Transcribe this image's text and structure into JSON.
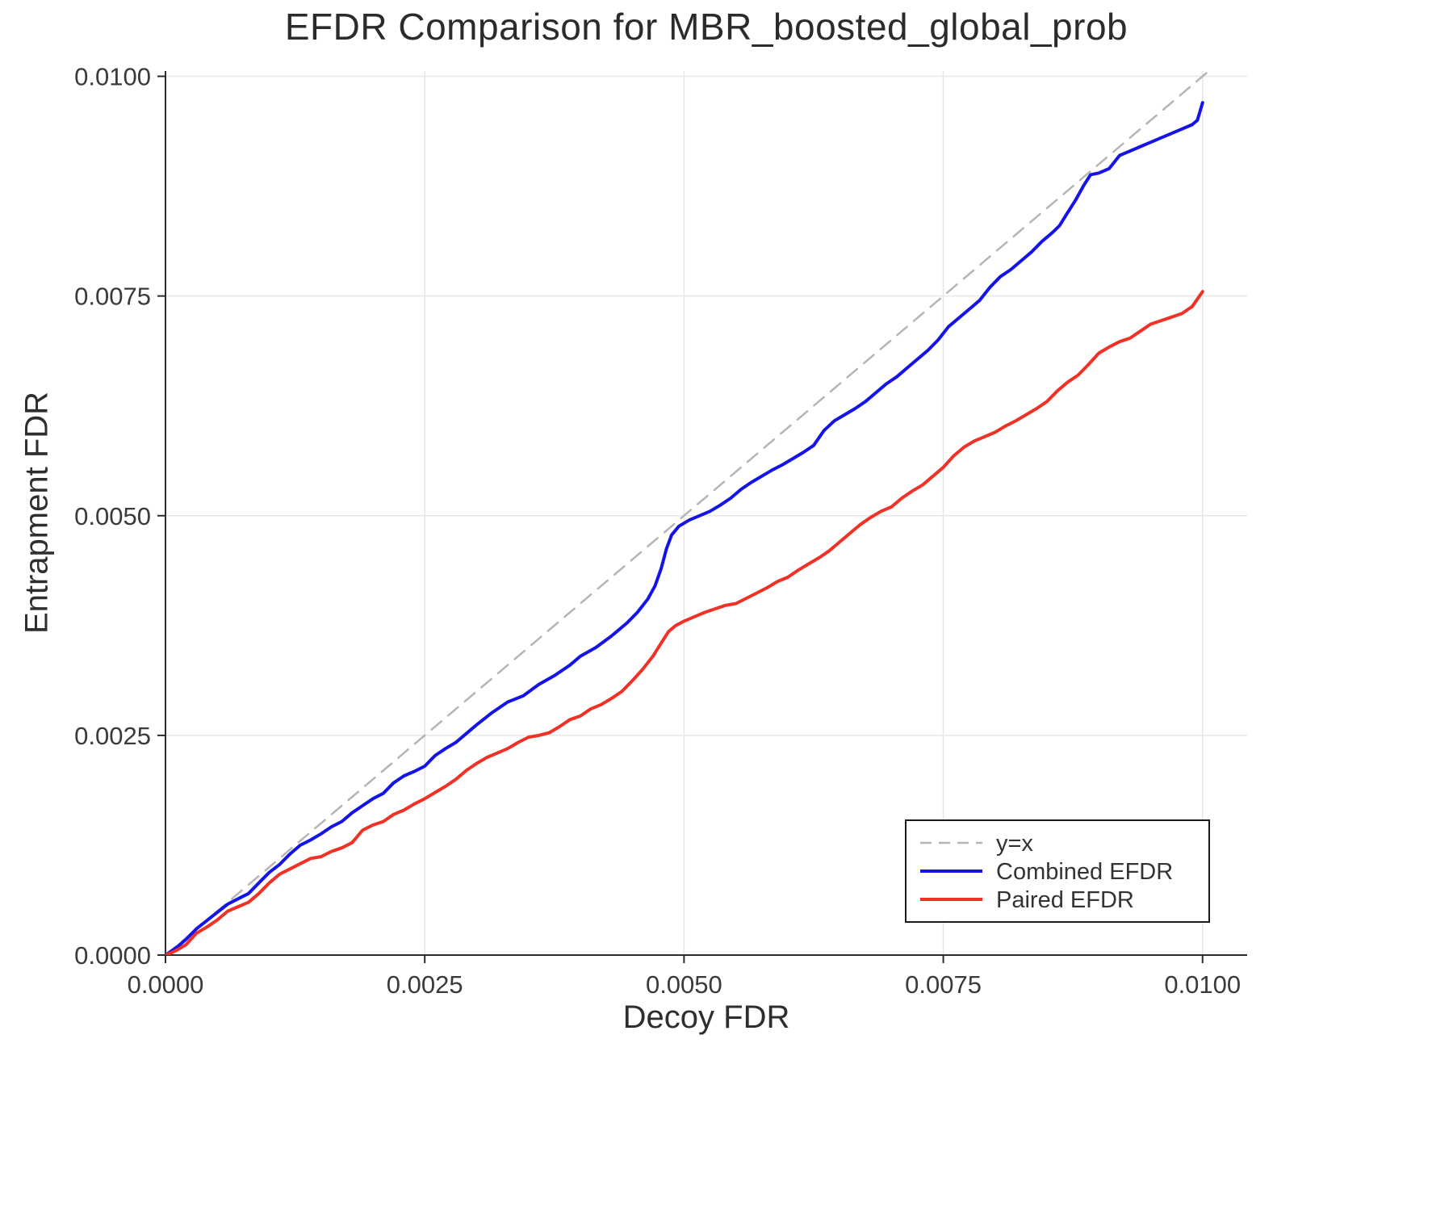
{
  "chart_data": {
    "type": "line",
    "title": "EFDR Comparison for MBR_boosted_global_prob",
    "xlabel": "Decoy FDR",
    "ylabel": "Entrapment FDR",
    "xlim": [
      0,
      0.01043
    ],
    "ylim": [
      0,
      0.01006
    ],
    "grid": true,
    "xticks": {
      "values": [
        0.0,
        0.0025,
        0.005,
        0.0075,
        0.01
      ],
      "labels": [
        "0.0000",
        "0.0025",
        "0.0050",
        "0.0075",
        "0.0100"
      ]
    },
    "yticks": {
      "values": [
        0.0,
        0.0025,
        0.005,
        0.0075,
        0.01
      ],
      "labels": [
        "0.0000",
        "0.0025",
        "0.0050",
        "0.0075",
        "0.0100"
      ]
    },
    "colors": {
      "grid": "#e7e7e7",
      "spine": "#2c2c2c",
      "tick_text": "#3a3a3a",
      "identity": "#b5b5b5",
      "combined": "#1414e8",
      "paired": "#f03126",
      "legend_border": "#1a1a1a",
      "legend_text": "#333333"
    },
    "legend": {
      "position": "bottom-right"
    },
    "series": [
      {
        "name": "y=x",
        "key": "identity",
        "style": "dashed",
        "width": 2.5,
        "points": [
          [
            0,
            0
          ],
          [
            0.01043,
            0.01043
          ]
        ]
      },
      {
        "name": "Combined EFDR",
        "key": "combined",
        "style": "solid",
        "width": 4,
        "points": [
          [
            0,
            0
          ],
          [
            0.0001,
            8e-05
          ],
          [
            0.0002,
            0.00018
          ],
          [
            0.0003,
            0.0003
          ],
          [
            0.00045,
            0.00044
          ],
          [
            0.0006,
            0.00058
          ],
          [
            0.0007,
            0.00064
          ],
          [
            0.0008,
            0.0007
          ],
          [
            0.0009,
            0.00082
          ],
          [
            0.001,
            0.00094
          ],
          [
            0.0011,
            0.00103
          ],
          [
            0.0012,
            0.00115
          ],
          [
            0.0013,
            0.00125
          ],
          [
            0.0014,
            0.00131
          ],
          [
            0.0015,
            0.00138
          ],
          [
            0.0016,
            0.00146
          ],
          [
            0.0017,
            0.00152
          ],
          [
            0.0018,
            0.00162
          ],
          [
            0.0019,
            0.0017
          ],
          [
            0.002,
            0.00178
          ],
          [
            0.0021,
            0.00184
          ],
          [
            0.0022,
            0.00196
          ],
          [
            0.0023,
            0.00204
          ],
          [
            0.0024,
            0.00209
          ],
          [
            0.0025,
            0.00215
          ],
          [
            0.0026,
            0.00227
          ],
          [
            0.0027,
            0.00235
          ],
          [
            0.0028,
            0.00242
          ],
          [
            0.0029,
            0.00252
          ],
          [
            0.003,
            0.00262
          ],
          [
            0.00315,
            0.00276
          ],
          [
            0.0033,
            0.00288
          ],
          [
            0.00345,
            0.00295
          ],
          [
            0.0036,
            0.00308
          ],
          [
            0.00375,
            0.00318
          ],
          [
            0.0039,
            0.0033
          ],
          [
            0.004,
            0.0034
          ],
          [
            0.00415,
            0.0035
          ],
          [
            0.0043,
            0.00363
          ],
          [
            0.00445,
            0.00378
          ],
          [
            0.00455,
            0.0039
          ],
          [
            0.00465,
            0.00405
          ],
          [
            0.00472,
            0.0042
          ],
          [
            0.00478,
            0.0044
          ],
          [
            0.00483,
            0.00462
          ],
          [
            0.00488,
            0.00478
          ],
          [
            0.00495,
            0.00488
          ],
          [
            0.00505,
            0.00495
          ],
          [
            0.00515,
            0.005
          ],
          [
            0.00525,
            0.00505
          ],
          [
            0.00535,
            0.00512
          ],
          [
            0.00545,
            0.0052
          ],
          [
            0.00555,
            0.0053
          ],
          [
            0.00565,
            0.00538
          ],
          [
            0.00575,
            0.00545
          ],
          [
            0.00585,
            0.00552
          ],
          [
            0.00595,
            0.00558
          ],
          [
            0.00605,
            0.00565
          ],
          [
            0.00615,
            0.00572
          ],
          [
            0.00625,
            0.0058
          ],
          [
            0.00635,
            0.00597
          ],
          [
            0.00645,
            0.00608
          ],
          [
            0.00655,
            0.00615
          ],
          [
            0.00665,
            0.00622
          ],
          [
            0.00675,
            0.0063
          ],
          [
            0.00685,
            0.0064
          ],
          [
            0.00695,
            0.0065
          ],
          [
            0.00705,
            0.00658
          ],
          [
            0.00715,
            0.00668
          ],
          [
            0.00725,
            0.00678
          ],
          [
            0.00735,
            0.00688
          ],
          [
            0.00745,
            0.007
          ],
          [
            0.00755,
            0.00715
          ],
          [
            0.00765,
            0.00725
          ],
          [
            0.00775,
            0.00735
          ],
          [
            0.00785,
            0.00745
          ],
          [
            0.00795,
            0.0076
          ],
          [
            0.00805,
            0.00772
          ],
          [
            0.00815,
            0.0078
          ],
          [
            0.00825,
            0.0079
          ],
          [
            0.00835,
            0.008
          ],
          [
            0.00845,
            0.00812
          ],
          [
            0.00855,
            0.00822
          ],
          [
            0.00862,
            0.0083
          ],
          [
            0.0087,
            0.00845
          ],
          [
            0.00878,
            0.0086
          ],
          [
            0.00885,
            0.00875
          ],
          [
            0.00892,
            0.00888
          ],
          [
            0.009,
            0.0089
          ],
          [
            0.0091,
            0.00895
          ],
          [
            0.0092,
            0.0091
          ],
          [
            0.0093,
            0.00915
          ],
          [
            0.0094,
            0.0092
          ],
          [
            0.0095,
            0.00925
          ],
          [
            0.0096,
            0.0093
          ],
          [
            0.0097,
            0.00935
          ],
          [
            0.0098,
            0.0094
          ],
          [
            0.0099,
            0.00945
          ],
          [
            0.00995,
            0.0095
          ],
          [
            0.01,
            0.0097
          ]
        ]
      },
      {
        "name": "Paired EFDR",
        "key": "paired",
        "style": "solid",
        "width": 4,
        "points": [
          [
            0,
            0
          ],
          [
            0.0001,
            5e-05
          ],
          [
            0.0002,
            0.00012
          ],
          [
            0.0003,
            0.00025
          ],
          [
            0.0004,
            0.00032
          ],
          [
            0.0005,
            0.0004
          ],
          [
            0.0006,
            0.0005
          ],
          [
            0.0007,
            0.00055
          ],
          [
            0.0008,
            0.0006
          ],
          [
            0.0009,
            0.0007
          ],
          [
            0.001,
            0.00082
          ],
          [
            0.0011,
            0.00092
          ],
          [
            0.0012,
            0.00098
          ],
          [
            0.0013,
            0.00104
          ],
          [
            0.0014,
            0.0011
          ],
          [
            0.0015,
            0.00112
          ],
          [
            0.0016,
            0.00118
          ],
          [
            0.0017,
            0.00122
          ],
          [
            0.0018,
            0.00128
          ],
          [
            0.0019,
            0.00142
          ],
          [
            0.002,
            0.00148
          ],
          [
            0.0021,
            0.00152
          ],
          [
            0.0022,
            0.0016
          ],
          [
            0.0023,
            0.00165
          ],
          [
            0.0024,
            0.00172
          ],
          [
            0.0025,
            0.00178
          ],
          [
            0.0026,
            0.00185
          ],
          [
            0.0027,
            0.00192
          ],
          [
            0.0028,
            0.002
          ],
          [
            0.0029,
            0.0021
          ],
          [
            0.003,
            0.00218
          ],
          [
            0.0031,
            0.00225
          ],
          [
            0.0032,
            0.0023
          ],
          [
            0.0033,
            0.00235
          ],
          [
            0.0034,
            0.00242
          ],
          [
            0.0035,
            0.00248
          ],
          [
            0.0036,
            0.0025
          ],
          [
            0.0037,
            0.00253
          ],
          [
            0.0038,
            0.0026
          ],
          [
            0.0039,
            0.00268
          ],
          [
            0.004,
            0.00272
          ],
          [
            0.0041,
            0.0028
          ],
          [
            0.0042,
            0.00285
          ],
          [
            0.0043,
            0.00292
          ],
          [
            0.0044,
            0.003
          ],
          [
            0.0045,
            0.00312
          ],
          [
            0.0046,
            0.00325
          ],
          [
            0.0047,
            0.0034
          ],
          [
            0.00478,
            0.00355
          ],
          [
            0.00485,
            0.00368
          ],
          [
            0.00492,
            0.00375
          ],
          [
            0.005,
            0.0038
          ],
          [
            0.0051,
            0.00385
          ],
          [
            0.0052,
            0.0039
          ],
          [
            0.0053,
            0.00394
          ],
          [
            0.0054,
            0.00398
          ],
          [
            0.0055,
            0.004
          ],
          [
            0.0056,
            0.00406
          ],
          [
            0.0057,
            0.00412
          ],
          [
            0.0058,
            0.00418
          ],
          [
            0.0059,
            0.00425
          ],
          [
            0.006,
            0.0043
          ],
          [
            0.0061,
            0.00438
          ],
          [
            0.0062,
            0.00445
          ],
          [
            0.0063,
            0.00452
          ],
          [
            0.0064,
            0.0046
          ],
          [
            0.0065,
            0.0047
          ],
          [
            0.0066,
            0.0048
          ],
          [
            0.0067,
            0.0049
          ],
          [
            0.0068,
            0.00498
          ],
          [
            0.0069,
            0.00505
          ],
          [
            0.007,
            0.0051
          ],
          [
            0.0071,
            0.0052
          ],
          [
            0.0072,
            0.00528
          ],
          [
            0.0073,
            0.00535
          ],
          [
            0.0074,
            0.00545
          ],
          [
            0.0075,
            0.00555
          ],
          [
            0.0076,
            0.00568
          ],
          [
            0.0077,
            0.00578
          ],
          [
            0.0078,
            0.00585
          ],
          [
            0.0079,
            0.0059
          ],
          [
            0.008,
            0.00595
          ],
          [
            0.0081,
            0.00602
          ],
          [
            0.0082,
            0.00608
          ],
          [
            0.0083,
            0.00615
          ],
          [
            0.0084,
            0.00622
          ],
          [
            0.0085,
            0.0063
          ],
          [
            0.0086,
            0.00642
          ],
          [
            0.0087,
            0.00652
          ],
          [
            0.0088,
            0.0066
          ],
          [
            0.0089,
            0.00672
          ],
          [
            0.009,
            0.00685
          ],
          [
            0.0091,
            0.00692
          ],
          [
            0.0092,
            0.00698
          ],
          [
            0.0093,
            0.00702
          ],
          [
            0.0094,
            0.0071
          ],
          [
            0.0095,
            0.00718
          ],
          [
            0.0096,
            0.00722
          ],
          [
            0.0097,
            0.00726
          ],
          [
            0.0098,
            0.0073
          ],
          [
            0.0099,
            0.00738
          ],
          [
            0.01,
            0.00755
          ]
        ]
      }
    ]
  }
}
